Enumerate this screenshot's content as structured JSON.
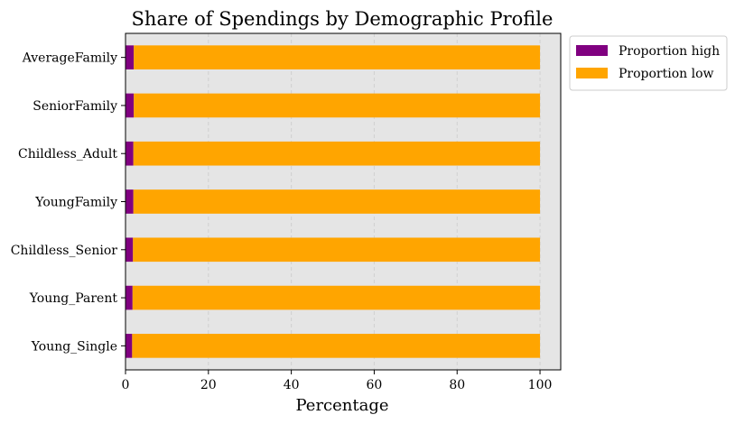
{
  "chart_data": {
    "type": "bar",
    "orientation": "horizontal",
    "stacked": true,
    "title": "Share of Spendings by Demographic Profile",
    "xlabel": "Percentage",
    "ylabel": "",
    "xlim": [
      0,
      105
    ],
    "xticks": [
      0,
      20,
      40,
      60,
      80,
      100
    ],
    "grid": true,
    "legend_position": "outside-top-right",
    "categories": [
      "Young_Single",
      "Young_Parent",
      "Childless_Senior",
      "YoungFamily",
      "Childless_Adult",
      "SeniorFamily",
      "AverageFamily"
    ],
    "series": [
      {
        "name": "Proportion high",
        "color": "#800080",
        "values": [
          1.6,
          1.7,
          1.8,
          1.9,
          1.9,
          2.0,
          2.0
        ]
      },
      {
        "name": "Proportion low",
        "color": "#FFA500",
        "values": [
          98.4,
          98.3,
          98.2,
          98.1,
          98.1,
          98.0,
          98.0
        ]
      }
    ],
    "plot_background": "#E5E5E5"
  }
}
